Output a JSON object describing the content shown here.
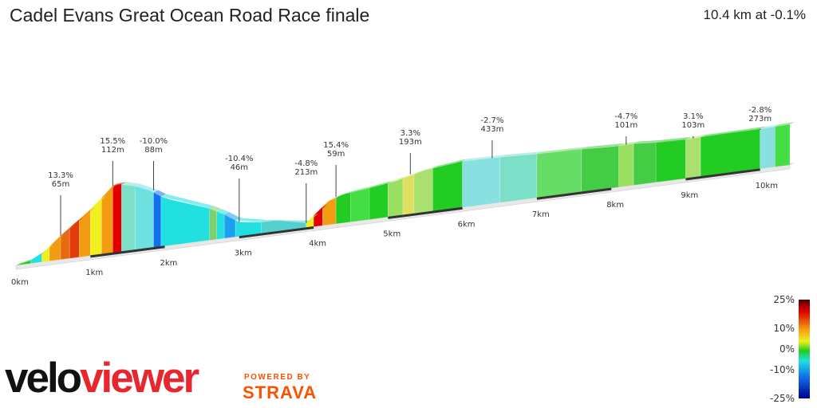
{
  "header": {
    "title": "Cadel Evans Great Ocean Road Race finale",
    "summary": "10.4 km at -0.1%"
  },
  "brand": {
    "velo": "velo",
    "viewer": "viewer",
    "powered_by": "POWERED BY",
    "strava": "STRAVA"
  },
  "colors": {
    "legend_top": "#5a0000",
    "red": "#e00000",
    "orange": "#f39c12",
    "yellow": "#f0f020",
    "green": "#22cc22",
    "cyan": "#22e0e0",
    "blue": "#1070f0",
    "legend_bottom": "#00008a"
  },
  "chart_data": {
    "type": "area",
    "x_unit": "km",
    "total_distance_km": 10.4,
    "average_gradient_pct": -0.1,
    "distance_markers": [
      "0km",
      "1km",
      "2km",
      "3km",
      "4km",
      "5km",
      "6km",
      "7km",
      "8km",
      "9km",
      "10km"
    ],
    "profile": [
      {
        "km": 0.0,
        "rel_h": 0
      },
      {
        "km": 0.2,
        "rel_h": 4
      },
      {
        "km": 0.4,
        "rel_h": 14
      },
      {
        "km": 0.6,
        "rel_h": 30
      },
      {
        "km": 0.8,
        "rel_h": 44
      },
      {
        "km": 1.0,
        "rel_h": 58
      },
      {
        "km": 1.2,
        "rel_h": 75
      },
      {
        "km": 1.3,
        "rel_h": 84
      },
      {
        "km": 1.4,
        "rel_h": 85
      },
      {
        "km": 1.6,
        "rel_h": 80
      },
      {
        "km": 1.8,
        "rel_h": 72
      },
      {
        "km": 2.0,
        "rel_h": 60
      },
      {
        "km": 2.3,
        "rel_h": 50
      },
      {
        "km": 2.6,
        "rel_h": 40
      },
      {
        "km": 2.8,
        "rel_h": 30
      },
      {
        "km": 3.0,
        "rel_h": 18
      },
      {
        "km": 3.3,
        "rel_h": 14
      },
      {
        "km": 3.5,
        "rel_h": 14
      },
      {
        "km": 3.7,
        "rel_h": 10
      },
      {
        "km": 3.9,
        "rel_h": 6
      },
      {
        "km": 4.0,
        "rel_h": 14
      },
      {
        "km": 4.2,
        "rel_h": 30
      },
      {
        "km": 4.4,
        "rel_h": 36
      },
      {
        "km": 4.8,
        "rel_h": 40
      },
      {
        "km": 5.1,
        "rel_h": 44
      },
      {
        "km": 5.5,
        "rel_h": 53
      },
      {
        "km": 6.0,
        "rel_h": 58
      },
      {
        "km": 6.5,
        "rel_h": 57
      },
      {
        "km": 7.0,
        "rel_h": 55
      },
      {
        "km": 7.5,
        "rel_h": 54
      },
      {
        "km": 8.0,
        "rel_h": 52
      },
      {
        "km": 8.3,
        "rel_h": 52
      },
      {
        "km": 8.6,
        "rel_h": 50
      },
      {
        "km": 9.0,
        "rel_h": 49
      },
      {
        "km": 9.5,
        "rel_h": 50
      },
      {
        "km": 10.0,
        "rel_h": 50
      },
      {
        "km": 10.4,
        "rel_h": 51
      }
    ],
    "segments": [
      {
        "km0": 0.0,
        "km1": 0.2,
        "color": "#22cc22"
      },
      {
        "km0": 0.2,
        "km1": 0.35,
        "color": "#22e0e0"
      },
      {
        "km0": 0.35,
        "km1": 0.45,
        "color": "#f0f020"
      },
      {
        "km0": 0.45,
        "km1": 0.6,
        "color": "#f39c12"
      },
      {
        "km0": 0.6,
        "km1": 0.72,
        "color": "#e86a10"
      },
      {
        "km0": 0.72,
        "km1": 0.85,
        "color": "#e53a0c"
      },
      {
        "km0": 0.85,
        "km1": 1.0,
        "color": "#f39c12"
      },
      {
        "km0": 1.0,
        "km1": 1.15,
        "color": "#f0f020"
      },
      {
        "km0": 1.15,
        "km1": 1.3,
        "color": "#f39c12"
      },
      {
        "km0": 1.3,
        "km1": 1.42,
        "color": "#e00000"
      },
      {
        "km0": 1.42,
        "km1": 1.6,
        "color": "#7ce0c8"
      },
      {
        "km0": 1.6,
        "km1": 1.85,
        "color": "#6fe0e0"
      },
      {
        "km0": 1.85,
        "km1": 1.95,
        "color": "#1070f0"
      },
      {
        "km0": 1.95,
        "km1": 2.6,
        "color": "#22e0e0"
      },
      {
        "km0": 2.6,
        "km1": 2.7,
        "color": "#7cd070"
      },
      {
        "km0": 2.7,
        "km1": 2.8,
        "color": "#22e0e0"
      },
      {
        "km0": 2.8,
        "km1": 2.95,
        "color": "#1aa0f0"
      },
      {
        "km0": 2.95,
        "km1": 3.3,
        "color": "#22e0e0"
      },
      {
        "km0": 3.3,
        "km1": 3.9,
        "color": "#55d0d0"
      },
      {
        "km0": 3.9,
        "km1": 4.0,
        "color": "#f0f020"
      },
      {
        "km0": 4.0,
        "km1": 4.12,
        "color": "#e00000"
      },
      {
        "km0": 4.12,
        "km1": 4.3,
        "color": "#f39c12"
      },
      {
        "km0": 4.3,
        "km1": 4.5,
        "color": "#22cc22"
      },
      {
        "km0": 4.5,
        "km1": 4.75,
        "color": "#44dd44"
      },
      {
        "km0": 4.75,
        "km1": 5.0,
        "color": "#22cc22"
      },
      {
        "km0": 5.0,
        "km1": 5.2,
        "color": "#99e060"
      },
      {
        "km0": 5.2,
        "km1": 5.35,
        "color": "#e0e060"
      },
      {
        "km0": 5.35,
        "km1": 5.6,
        "color": "#aae070"
      },
      {
        "km0": 5.6,
        "km1": 6.0,
        "color": "#22cc22"
      },
      {
        "km0": 6.0,
        "km1": 6.5,
        "color": "#88e0e0"
      },
      {
        "km0": 6.5,
        "km1": 7.0,
        "color": "#7ce0c8"
      },
      {
        "km0": 7.0,
        "km1": 7.6,
        "color": "#66dd66"
      },
      {
        "km0": 7.6,
        "km1": 8.1,
        "color": "#44cc44"
      },
      {
        "km0": 8.1,
        "km1": 8.3,
        "color": "#99e060"
      },
      {
        "km0": 8.3,
        "km1": 8.6,
        "color": "#44cc44"
      },
      {
        "km0": 8.6,
        "km1": 9.0,
        "color": "#22cc22"
      },
      {
        "km0": 9.0,
        "km1": 9.2,
        "color": "#aae070"
      },
      {
        "km0": 9.2,
        "km1": 10.0,
        "color": "#22cc22"
      },
      {
        "km0": 10.0,
        "km1": 10.2,
        "color": "#88e0e0"
      },
      {
        "km0": 10.2,
        "km1": 10.4,
        "color": "#44dd44"
      }
    ],
    "annotations": [
      {
        "km": 0.6,
        "rel_h": 30,
        "gradient": "13.3%",
        "length": "65m"
      },
      {
        "km": 1.3,
        "rel_h": 84,
        "gradient": "15.5%",
        "length": "112m"
      },
      {
        "km": 1.85,
        "rel_h": 72,
        "gradient": "-10.0%",
        "length": "88m"
      },
      {
        "km": 3.0,
        "rel_h": 18,
        "gradient": "-10.4%",
        "length": "46m"
      },
      {
        "km": 3.9,
        "rel_h": 6,
        "gradient": "-4.8%",
        "length": "213m"
      },
      {
        "km": 4.3,
        "rel_h": 34,
        "gradient": "15.4%",
        "length": "59m"
      },
      {
        "km": 5.3,
        "rel_h": 50,
        "gradient": "3.3%",
        "length": "193m"
      },
      {
        "km": 6.4,
        "rel_h": 57,
        "gradient": "-2.7%",
        "length": "433m"
      },
      {
        "km": 8.2,
        "rel_h": 52,
        "gradient": "-4.7%",
        "length": "101m"
      },
      {
        "km": 9.1,
        "rel_h": 49,
        "gradient": "3.1%",
        "length": "103m"
      },
      {
        "km": 10.0,
        "rel_h": 50,
        "gradient": "-2.8%",
        "length": "273m"
      }
    ],
    "legend": {
      "labels": [
        "25%",
        "10%",
        "0%",
        "-10%",
        "-25%"
      ],
      "values": [
        25,
        10,
        0,
        -10,
        -25
      ]
    }
  }
}
